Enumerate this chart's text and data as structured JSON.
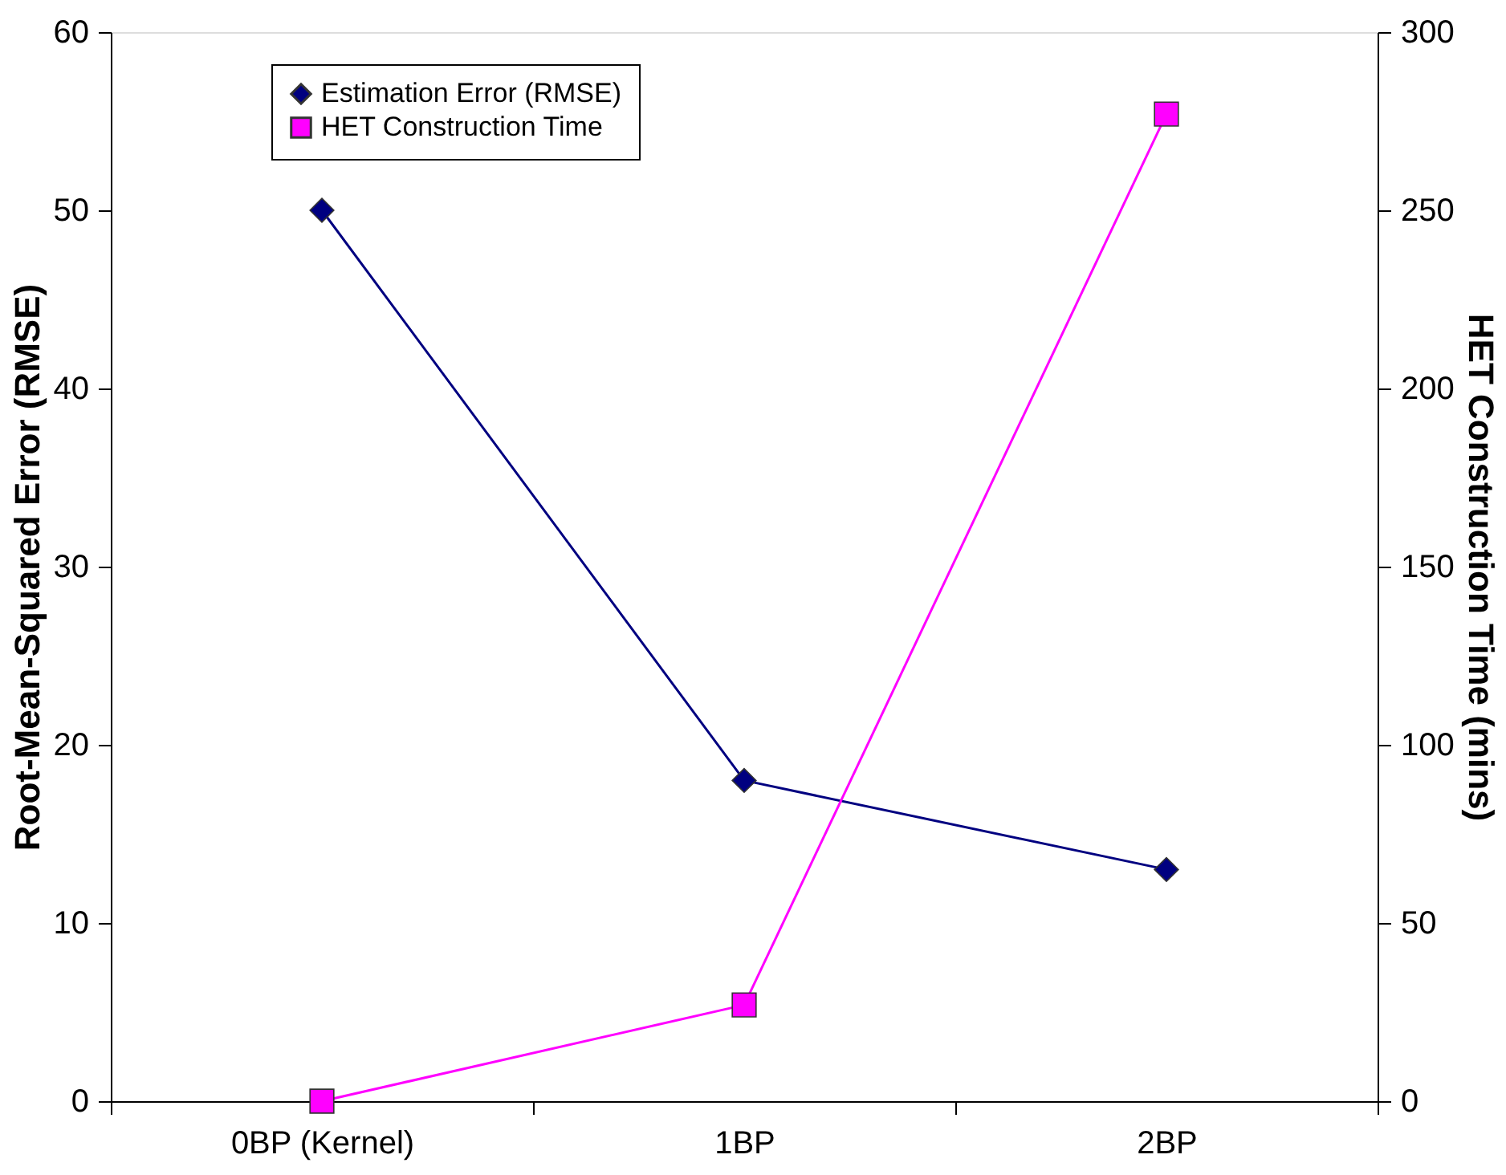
{
  "chart_data": {
    "type": "line",
    "categories": [
      "0BP (Kernel)",
      "1BP",
      "2BP"
    ],
    "ylabel": "Root-Mean-Squared Error (RMSE)",
    "y2label": "HET Construction Time (mins)",
    "ylim": [
      0,
      60
    ],
    "yticks": [
      0,
      10,
      20,
      30,
      40,
      50,
      60
    ],
    "y2lim": [
      0,
      300
    ],
    "y2ticks": [
      0,
      50,
      100,
      150,
      200,
      250,
      300
    ],
    "series": [
      {
        "name": "Estimation Error (RMSE)",
        "color": "#000080",
        "values": [
          50,
          18,
          13
        ],
        "marker": "diamond"
      },
      {
        "name": "HET Construction Time",
        "color": "#ff00ff",
        "values": [
          0,
          27,
          277
        ],
        "marker": "square",
        "axis": "y2"
      }
    ],
    "legend": "top left",
    "grid": false,
    "line_style": "solid"
  }
}
